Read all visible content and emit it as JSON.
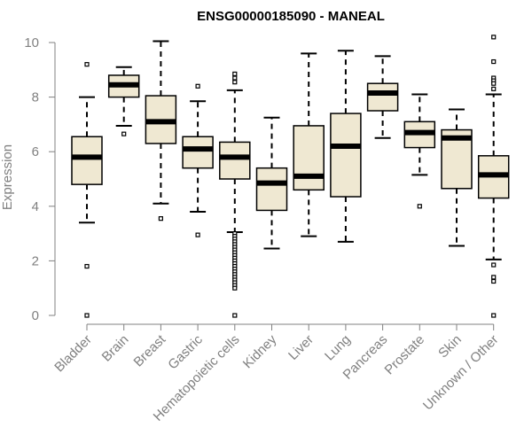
{
  "chart_data": {
    "type": "boxplot",
    "title": "ENSG00000185090 - MANEAL",
    "xlabel": "",
    "ylabel": "Expression",
    "ylim": [
      0,
      10
    ],
    "yticks": [
      "0",
      "2",
      "4",
      "6",
      "8",
      "10"
    ],
    "ytick_values": [
      0,
      2,
      4,
      6,
      8,
      10
    ],
    "colors": {
      "box_fill": "#efe8d2",
      "stroke": "#000000",
      "axis": "#808080"
    },
    "categories": [
      "Bladder",
      "Brain",
      "Breast",
      "Gastric",
      "Hematopoietic cells",
      "Kidney",
      "Liver",
      "Lung",
      "Pancreas",
      "Prostate",
      "Skin",
      "Unknown / Other"
    ],
    "boxes": [
      {
        "name": "Bladder",
        "lower_whisker": 3.4,
        "q1": 4.8,
        "median": 5.8,
        "q3": 6.55,
        "upper_whisker": 8.0,
        "outliers": [
          9.2,
          1.8,
          0.0
        ]
      },
      {
        "name": "Brain",
        "lower_whisker": 6.95,
        "q1": 8.0,
        "median": 8.45,
        "q3": 8.8,
        "upper_whisker": 9.1,
        "outliers": [
          6.65
        ]
      },
      {
        "name": "Breast",
        "lower_whisker": 4.1,
        "q1": 6.3,
        "median": 7.1,
        "q3": 8.05,
        "upper_whisker": 10.05,
        "outliers": [
          3.55
        ]
      },
      {
        "name": "Gastric",
        "lower_whisker": 3.8,
        "q1": 5.4,
        "median": 6.1,
        "q3": 6.55,
        "upper_whisker": 7.85,
        "outliers": [
          8.4,
          2.95
        ]
      },
      {
        "name": "Hematopoietic cells",
        "lower_whisker": 3.05,
        "q1": 5.0,
        "median": 5.8,
        "q3": 6.35,
        "upper_whisker": 8.25,
        "outliers": [
          8.85,
          8.7,
          8.55,
          3.0,
          2.9,
          2.8,
          2.7,
          2.6,
          2.5,
          2.4,
          2.3,
          2.2,
          2.1,
          2.0,
          1.9,
          1.8,
          1.7,
          1.6,
          1.5,
          1.4,
          1.3,
          1.2,
          1.1,
          1.0,
          0.0
        ]
      },
      {
        "name": "Kidney",
        "lower_whisker": 2.45,
        "q1": 3.85,
        "median": 4.85,
        "q3": 5.4,
        "upper_whisker": 7.25,
        "outliers": []
      },
      {
        "name": "Liver",
        "lower_whisker": 2.9,
        "q1": 4.6,
        "median": 5.1,
        "q3": 6.95,
        "upper_whisker": 9.6,
        "outliers": []
      },
      {
        "name": "Lung",
        "lower_whisker": 2.7,
        "q1": 4.35,
        "median": 6.2,
        "q3": 7.4,
        "upper_whisker": 9.7,
        "outliers": []
      },
      {
        "name": "Pancreas",
        "lower_whisker": 6.5,
        "q1": 7.5,
        "median": 8.15,
        "q3": 8.5,
        "upper_whisker": 9.5,
        "outliers": []
      },
      {
        "name": "Prostate",
        "lower_whisker": 5.15,
        "q1": 6.15,
        "median": 6.7,
        "q3": 7.1,
        "upper_whisker": 8.1,
        "outliers": [
          4.0
        ]
      },
      {
        "name": "Skin",
        "lower_whisker": 2.55,
        "q1": 4.65,
        "median": 6.5,
        "q3": 6.8,
        "upper_whisker": 7.55,
        "outliers": []
      },
      {
        "name": "Unknown / Other",
        "lower_whisker": 2.05,
        "q1": 4.3,
        "median": 5.15,
        "q3": 5.85,
        "upper_whisker": 8.1,
        "outliers": [
          10.2,
          9.3,
          8.7,
          8.6,
          8.5,
          8.3,
          1.85,
          1.4,
          1.25,
          0.0
        ]
      }
    ]
  }
}
